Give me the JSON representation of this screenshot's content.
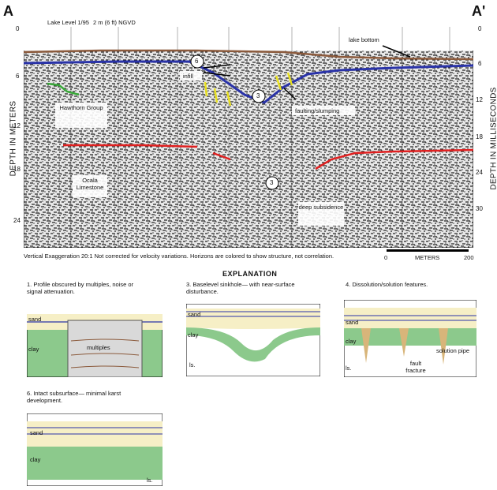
{
  "section": {
    "left": "A",
    "right": "A'"
  },
  "profile": {
    "header_left": "Lake Level 1/95",
    "header_right": "2 m (6 ft) NGVD",
    "left_axis_label": "DEPTH IN METERS",
    "right_axis_label": "DEPTH IN MILLISECONDS",
    "left_ticks": [
      "0",
      "6",
      "12",
      "18",
      "24"
    ],
    "right_ticks": [
      "0",
      "6",
      "12",
      "18",
      "24",
      "30"
    ],
    "labels": {
      "lake_bottom": "lake bottom",
      "infill": "infill",
      "faulting": "faulting/slumping",
      "hawthorn": "Hawthorn Group",
      "ocala": "Ocala Limestone",
      "deep_subsidence": "deep subsidence",
      "marker6": "6",
      "marker3a": "3",
      "marker3b": "3"
    },
    "footer_note": "Vertical Exaggeration 20:1   Not corrected for velocity variations.   Horizons are colored to show structure, not correlation.",
    "scale": {
      "start": "0",
      "label": "METERS",
      "end": "200"
    }
  },
  "explanation": {
    "title": "EXPLANATION",
    "panels": [
      {
        "caption": "1. Profile obscured by multiples, noise or signal attenuation.",
        "labels": [
          "sand",
          "clay",
          "multiples"
        ]
      },
      {
        "caption": "3. Baselevel sinkhole— with near-surface disturbance.",
        "labels": [
          "sand",
          "clay",
          "ls."
        ]
      },
      {
        "caption": "4. Dissolution/solution features.",
        "labels": [
          "sand",
          "clay",
          "ls.",
          "fault fracture",
          "solution pipe"
        ]
      },
      {
        "caption": "6. Intact subsurface— minimal karst development.",
        "labels": [
          "sand",
          "clay",
          "ls."
        ]
      }
    ]
  },
  "colors": {
    "brown_horizon": "#8b5a3c",
    "blue_horizon": "#2a33a8",
    "red_horizon": "#e02020",
    "green_horizon": "#3aa83a",
    "yellow_infill": "#e8e020",
    "sand": "#f6efc6",
    "clay": "#8cc98c",
    "multiples_bg": "#d9d9d9"
  }
}
